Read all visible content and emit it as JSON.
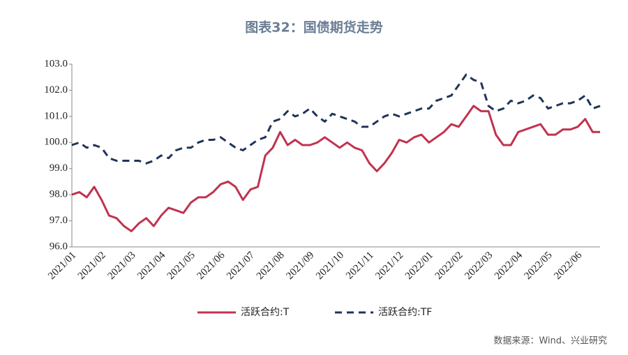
{
  "chart_data": {
    "type": "line",
    "title": "图表32：国债期货走势",
    "source": "数据来源：Wind、兴业研究",
    "categories": [
      "2021/01",
      null,
      null,
      null,
      "2021/02",
      null,
      null,
      null,
      "2021/03",
      null,
      null,
      null,
      "2021/04",
      null,
      null,
      null,
      "2021/05",
      null,
      null,
      null,
      "2021/06",
      null,
      null,
      null,
      "2021/07",
      null,
      null,
      null,
      "2021/08",
      null,
      null,
      null,
      "2021/09",
      null,
      null,
      null,
      "2021/10",
      null,
      null,
      null,
      "2021/11",
      null,
      null,
      null,
      "2021/12",
      null,
      null,
      null,
      "2022/01",
      null,
      null,
      null,
      "2022/02",
      null,
      null,
      null,
      "2022/03",
      null,
      null,
      null,
      "2022/04",
      null,
      null,
      null,
      "2022/05",
      null,
      null,
      null,
      "2022/06",
      null,
      null,
      null
    ],
    "series": [
      {
        "name": "活跃合约:T",
        "color": "#c0334f",
        "dash": false,
        "values": [
          98.0,
          98.1,
          97.9,
          98.3,
          97.8,
          97.2,
          97.1,
          96.8,
          96.6,
          96.9,
          97.1,
          96.8,
          97.2,
          97.5,
          97.4,
          97.3,
          97.7,
          97.9,
          97.9,
          98.1,
          98.4,
          98.5,
          98.3,
          97.8,
          98.2,
          98.3,
          99.5,
          99.8,
          100.4,
          99.9,
          100.1,
          99.9,
          99.9,
          100.0,
          100.2,
          100.0,
          99.8,
          100.0,
          99.8,
          99.7,
          99.2,
          98.9,
          99.2,
          99.6,
          100.1,
          100.0,
          100.2,
          100.3,
          100.0,
          100.2,
          100.4,
          100.7,
          100.6,
          101.0,
          101.4,
          101.2,
          101.2,
          100.3,
          99.9,
          99.9,
          100.4,
          100.5,
          100.6,
          100.7,
          100.3,
          100.3,
          100.5,
          100.5,
          100.6,
          100.9,
          100.4,
          100.4
        ]
      },
      {
        "name": "活跃合约:TF",
        "color": "#1f3559",
        "dash": true,
        "values": [
          99.9,
          100.0,
          99.8,
          99.9,
          99.8,
          99.4,
          99.3,
          99.3,
          99.3,
          99.3,
          99.2,
          99.3,
          99.5,
          99.4,
          99.7,
          99.8,
          99.8,
          100.0,
          100.1,
          100.1,
          100.2,
          100.0,
          99.8,
          99.7,
          99.9,
          100.1,
          100.2,
          100.8,
          100.9,
          101.2,
          101.0,
          101.1,
          101.3,
          101.0,
          100.8,
          101.1,
          101.0,
          100.9,
          100.8,
          100.6,
          100.6,
          100.8,
          101.0,
          101.1,
          101.0,
          101.1,
          101.2,
          101.3,
          101.3,
          101.6,
          101.7,
          101.8,
          102.2,
          102.6,
          102.4,
          102.3,
          101.4,
          101.2,
          101.3,
          101.6,
          101.5,
          101.6,
          101.8,
          101.7,
          101.3,
          101.4,
          101.5,
          101.5,
          101.6,
          101.8,
          101.3,
          101.4
        ]
      }
    ],
    "ylim": [
      96,
      103
    ],
    "yticks": [
      {
        "value": 96,
        "label": "96.0"
      },
      {
        "value": 97,
        "label": "97.0"
      },
      {
        "value": 98,
        "label": "98.0"
      },
      {
        "value": 99,
        "label": "99.0"
      },
      {
        "value": 100,
        "label": "100.0"
      },
      {
        "value": 101,
        "label": "101.0"
      },
      {
        "value": 102,
        "label": "102.0"
      },
      {
        "value": 103,
        "label": "103.0"
      }
    ],
    "grid": false
  }
}
